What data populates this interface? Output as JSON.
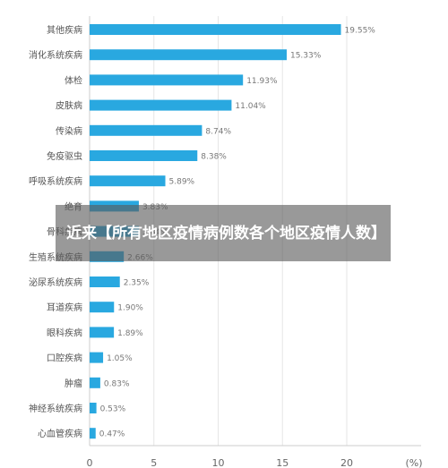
{
  "overlay": {
    "title": "近来【所有地区疫情病例数各个地区疫情人数】"
  },
  "chart_data": {
    "type": "bar",
    "orientation": "horizontal",
    "categories": [
      "其他疾病",
      "消化系统疾病",
      "体检",
      "皮肤病",
      "传染病",
      "免疫驱虫",
      "呼吸系统疾病",
      "绝育",
      "骨科疾病",
      "生殖系统疾病",
      "泌尿系统疾病",
      "耳道疾病",
      "眼科疾病",
      "口腔疾病",
      "肿瘤",
      "神经系统疾病",
      "心血管疾病"
    ],
    "values": [
      19.55,
      15.33,
      11.93,
      11.04,
      8.74,
      8.38,
      5.89,
      3.83,
      3.84,
      2.66,
      2.35,
      1.9,
      1.89,
      1.05,
      0.83,
      0.53,
      0.47
    ],
    "value_labels": [
      "19.55%",
      "15.33%",
      "11.93%",
      "11.04%",
      "8.74%",
      "8.38%",
      "5.89%",
      "3.83%",
      "3.84%",
      "2.66%",
      "2.35%",
      "1.90%",
      "1.89%",
      "1.05%",
      "0.83%",
      "0.53%",
      "0.47%"
    ],
    "xlim": [
      0,
      22
    ],
    "xticks": [
      0,
      5,
      10,
      15,
      20
    ],
    "x_unit": "(%)",
    "grid": true,
    "colors": {
      "bar": "#29a8e0",
      "grid": "#e6e6e6",
      "axis": "#cccccc"
    }
  }
}
